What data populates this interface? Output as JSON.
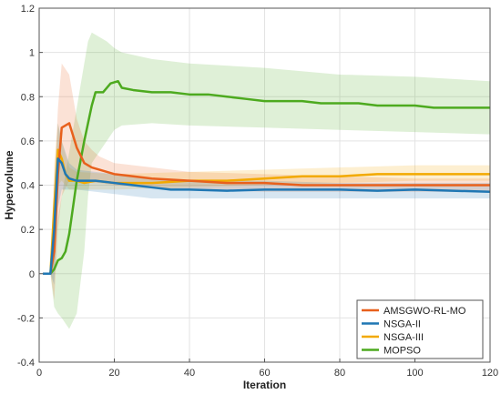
{
  "chart_data": {
    "type": "line",
    "xlabel": "Iteration",
    "ylabel": "Hypervolume",
    "xlim": [
      0,
      120
    ],
    "ylim": [
      -0.4,
      1.2
    ],
    "xticks": [
      0,
      20,
      40,
      60,
      80,
      100,
      120
    ],
    "xtick_labels": [
      "0",
      "20",
      "40",
      "60",
      "80",
      "100",
      "120"
    ],
    "yticks": [
      -0.4,
      -0.2,
      0,
      0.2,
      0.4,
      0.6,
      0.8,
      1,
      1.2
    ],
    "ytick_labels": [
      "-0.4",
      "-0.2",
      "0",
      "0.2",
      "0.4",
      "0.6",
      "0.8",
      "1",
      "1.2"
    ],
    "grid": true,
    "legend_position": "bottom-right",
    "shaded_bands": true,
    "series": [
      {
        "name": "AMSGWO-RL-MO",
        "color": "#E8601C",
        "points": [
          [
            1,
            0
          ],
          [
            2,
            0
          ],
          [
            3,
            0
          ],
          [
            4,
            0.1
          ],
          [
            5,
            0.45
          ],
          [
            6,
            0.66
          ],
          [
            8,
            0.68
          ],
          [
            10,
            0.57
          ],
          [
            12,
            0.5
          ],
          [
            14,
            0.48
          ],
          [
            16,
            0.47
          ],
          [
            20,
            0.45
          ],
          [
            25,
            0.44
          ],
          [
            30,
            0.43
          ],
          [
            40,
            0.42
          ],
          [
            50,
            0.41
          ],
          [
            60,
            0.41
          ],
          [
            70,
            0.4
          ],
          [
            80,
            0.4
          ],
          [
            90,
            0.4
          ],
          [
            100,
            0.4
          ],
          [
            110,
            0.4
          ],
          [
            120,
            0.4
          ]
        ],
        "band": [
          [
            1,
            0,
            0
          ],
          [
            2,
            0,
            0
          ],
          [
            3,
            0,
            0
          ],
          [
            4,
            -0.12,
            0.4
          ],
          [
            5,
            0.2,
            0.75
          ],
          [
            6,
            0.35,
            0.95
          ],
          [
            8,
            0.42,
            0.9
          ],
          [
            10,
            0.42,
            0.7
          ],
          [
            12,
            0.42,
            0.6
          ],
          [
            14,
            0.41,
            0.56
          ],
          [
            16,
            0.41,
            0.53
          ],
          [
            20,
            0.4,
            0.5
          ],
          [
            30,
            0.39,
            0.48
          ],
          [
            40,
            0.38,
            0.46
          ],
          [
            60,
            0.37,
            0.45
          ],
          [
            80,
            0.37,
            0.44
          ],
          [
            100,
            0.37,
            0.43
          ],
          [
            120,
            0.37,
            0.43
          ]
        ]
      },
      {
        "name": "NSGA-II",
        "color": "#1F77B4",
        "points": [
          [
            1,
            0
          ],
          [
            2,
            0
          ],
          [
            3,
            0
          ],
          [
            4,
            0.2
          ],
          [
            5,
            0.52
          ],
          [
            6,
            0.5
          ],
          [
            7,
            0.45
          ],
          [
            8,
            0.43
          ],
          [
            10,
            0.42
          ],
          [
            15,
            0.42
          ],
          [
            20,
            0.41
          ],
          [
            25,
            0.4
          ],
          [
            30,
            0.39
          ],
          [
            35,
            0.38
          ],
          [
            40,
            0.38
          ],
          [
            50,
            0.375
          ],
          [
            60,
            0.38
          ],
          [
            70,
            0.38
          ],
          [
            80,
            0.38
          ],
          [
            90,
            0.375
          ],
          [
            100,
            0.38
          ],
          [
            110,
            0.375
          ],
          [
            120,
            0.37
          ]
        ],
        "band": [
          [
            1,
            0,
            0
          ],
          [
            2,
            0,
            0
          ],
          [
            3,
            0,
            0
          ],
          [
            4,
            -0.05,
            0.4
          ],
          [
            5,
            0.3,
            0.68
          ],
          [
            6,
            0.38,
            0.6
          ],
          [
            8,
            0.38,
            0.5
          ],
          [
            10,
            0.38,
            0.47
          ],
          [
            15,
            0.37,
            0.46
          ],
          [
            20,
            0.36,
            0.45
          ],
          [
            30,
            0.34,
            0.43
          ],
          [
            40,
            0.34,
            0.42
          ],
          [
            60,
            0.34,
            0.42
          ],
          [
            80,
            0.34,
            0.41
          ],
          [
            100,
            0.34,
            0.41
          ],
          [
            120,
            0.34,
            0.41
          ]
        ]
      },
      {
        "name": "NSGA-III",
        "color": "#F2A900",
        "points": [
          [
            1,
            0
          ],
          [
            2,
            0
          ],
          [
            3,
            0
          ],
          [
            4,
            0.3
          ],
          [
            5,
            0.56
          ],
          [
            6,
            0.52
          ],
          [
            7,
            0.45
          ],
          [
            8,
            0.42
          ],
          [
            10,
            0.42
          ],
          [
            12,
            0.41
          ],
          [
            15,
            0.42
          ],
          [
            20,
            0.41
          ],
          [
            30,
            0.41
          ],
          [
            40,
            0.42
          ],
          [
            50,
            0.42
          ],
          [
            60,
            0.43
          ],
          [
            70,
            0.44
          ],
          [
            80,
            0.44
          ],
          [
            90,
            0.45
          ],
          [
            100,
            0.45
          ],
          [
            110,
            0.45
          ],
          [
            120,
            0.45
          ]
        ],
        "band": [
          [
            1,
            0,
            0
          ],
          [
            2,
            0,
            0
          ],
          [
            3,
            0,
            0
          ],
          [
            4,
            0.05,
            0.5
          ],
          [
            5,
            0.4,
            0.68
          ],
          [
            6,
            0.42,
            0.6
          ],
          [
            8,
            0.38,
            0.48
          ],
          [
            10,
            0.38,
            0.46
          ],
          [
            20,
            0.38,
            0.45
          ],
          [
            40,
            0.39,
            0.46
          ],
          [
            60,
            0.4,
            0.47
          ],
          [
            80,
            0.41,
            0.48
          ],
          [
            100,
            0.42,
            0.49
          ],
          [
            120,
            0.42,
            0.49
          ]
        ]
      },
      {
        "name": "MOPSO",
        "color": "#4DAA1F",
        "points": [
          [
            1,
            0
          ],
          [
            2,
            0
          ],
          [
            3,
            0
          ],
          [
            4,
            0.02
          ],
          [
            5,
            0.06
          ],
          [
            6,
            0.07
          ],
          [
            7,
            0.1
          ],
          [
            8,
            0.18
          ],
          [
            9,
            0.3
          ],
          [
            10,
            0.42
          ],
          [
            12,
            0.6
          ],
          [
            14,
            0.76
          ],
          [
            15,
            0.82
          ],
          [
            17,
            0.82
          ],
          [
            19,
            0.86
          ],
          [
            21,
            0.87
          ],
          [
            22,
            0.84
          ],
          [
            25,
            0.83
          ],
          [
            30,
            0.82
          ],
          [
            35,
            0.82
          ],
          [
            40,
            0.81
          ],
          [
            45,
            0.81
          ],
          [
            50,
            0.8
          ],
          [
            55,
            0.79
          ],
          [
            60,
            0.78
          ],
          [
            65,
            0.78
          ],
          [
            70,
            0.78
          ],
          [
            75,
            0.77
          ],
          [
            80,
            0.77
          ],
          [
            85,
            0.77
          ],
          [
            90,
            0.76
          ],
          [
            95,
            0.76
          ],
          [
            100,
            0.76
          ],
          [
            105,
            0.75
          ],
          [
            110,
            0.75
          ],
          [
            115,
            0.75
          ],
          [
            120,
            0.75
          ]
        ],
        "band": [
          [
            1,
            0,
            0
          ],
          [
            2,
            0,
            0
          ],
          [
            3,
            0,
            0
          ],
          [
            4,
            -0.15,
            0.15
          ],
          [
            5,
            -0.18,
            0.25
          ],
          [
            6,
            -0.2,
            0.35
          ],
          [
            8,
            -0.25,
            0.55
          ],
          [
            10,
            -0.18,
            0.75
          ],
          [
            12,
            0.1,
            0.95
          ],
          [
            13,
            0.35,
            1.05
          ],
          [
            14,
            0.5,
            1.09
          ],
          [
            16,
            0.55,
            1.07
          ],
          [
            18,
            0.6,
            1.05
          ],
          [
            20,
            0.65,
            1.02
          ],
          [
            22,
            0.67,
            1
          ],
          [
            30,
            0.68,
            0.97
          ],
          [
            40,
            0.67,
            0.95
          ],
          [
            60,
            0.66,
            0.93
          ],
          [
            80,
            0.65,
            0.9
          ],
          [
            100,
            0.64,
            0.89
          ],
          [
            120,
            0.63,
            0.87
          ]
        ]
      }
    ]
  }
}
